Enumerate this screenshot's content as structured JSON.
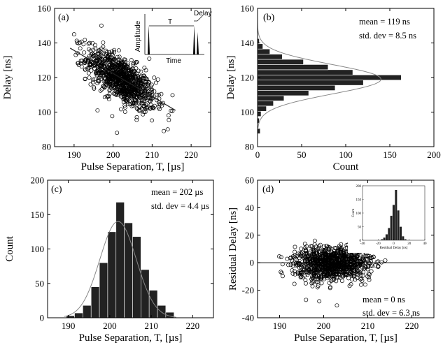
{
  "chart_data": [
    {
      "type": "scatter",
      "panel_label": "(a)",
      "xlabel": "Pulse Separation, T, [µs]",
      "ylabel": "Delay [ns]",
      "xlim": [
        185,
        225
      ],
      "ylim": [
        80,
        160
      ],
      "xticks": [
        "190",
        "200",
        "210",
        "220"
      ],
      "yticks": [
        "80",
        "100",
        "120",
        "140",
        "160"
      ],
      "marker": "open-circle",
      "fit_line": {
        "x": [
          189,
          216
        ],
        "y": [
          137,
          101
        ]
      },
      "cluster": {
        "n_points": 1000,
        "center": {
          "x": 202,
          "y": 119
        },
        "x_std": 4.4,
        "y_std": 8.5
      },
      "outlier_points": [
        {
          "x": 197,
          "y": 150
        },
        {
          "x": 201,
          "y": 88
        },
        {
          "x": 196,
          "y": 101
        },
        {
          "x": 213,
          "y": 89
        },
        {
          "x": 214,
          "y": 90
        },
        {
          "x": 190,
          "y": 145
        }
      ],
      "inset": {
        "xlabel": "Time",
        "ylabel": "Amplitude",
        "annotations": [
          "T",
          "Delay"
        ]
      }
    },
    {
      "type": "bar",
      "orientation": "horizontal",
      "panel_label": "(b)",
      "xlabel": "Count",
      "ylabel": "Delay [ns]",
      "xlim": [
        0,
        200
      ],
      "ylim": [
        80,
        160
      ],
      "xticks": [
        "0",
        "50",
        "100",
        "150",
        "200"
      ],
      "yticks": [
        "80",
        "100",
        "120",
        "140",
        "160"
      ],
      "bin_centers": [
        89,
        95,
        99,
        102,
        105,
        108,
        111,
        114,
        117,
        120,
        123,
        126,
        129,
        132,
        135,
        138,
        141
      ],
      "counts": [
        3,
        2,
        4,
        10,
        18,
        30,
        58,
        88,
        120,
        163,
        108,
        80,
        52,
        28,
        14,
        6,
        2
      ],
      "fit": {
        "type": "gaussian",
        "mean": 119,
        "std": 8.5,
        "peak": 140
      },
      "stats": [
        "mean = 119 ns",
        "std. dev = 8.5 ns"
      ]
    },
    {
      "type": "bar",
      "panel_label": "(c)",
      "xlabel": "Pulse Separation, T, [µs]",
      "ylabel": "Count",
      "xlim": [
        185,
        225
      ],
      "ylim": [
        0,
        200
      ],
      "xticks": [
        "190",
        "200",
        "210",
        "220"
      ],
      "yticks": [
        "0",
        "50",
        "100",
        "150",
        "200"
      ],
      "bin_centers": [
        190.5,
        192.5,
        194.5,
        196.5,
        198.5,
        200.5,
        202.5,
        204.5,
        206.5,
        208.5,
        210.5,
        212.5,
        214.5
      ],
      "counts": [
        3,
        7,
        18,
        45,
        80,
        125,
        168,
        138,
        118,
        70,
        40,
        18,
        8
      ],
      "fit": {
        "type": "gaussian",
        "mean": 202,
        "std": 4.4,
        "peak": 140
      },
      "stats": [
        "mean = 202 µs",
        "std. dev = 4.4 µs"
      ]
    },
    {
      "type": "scatter",
      "panel_label": "(d)",
      "xlabel": "Pulse Separation, T, [µs]",
      "ylabel": "Residual Delay [ns]",
      "xlim": [
        185,
        225
      ],
      "ylim": [
        -40,
        60
      ],
      "xticks": [
        "190",
        "200",
        "210",
        "220"
      ],
      "yticks": [
        "-40",
        "-20",
        "0",
        "20",
        "40",
        "60"
      ],
      "marker": "open-circle",
      "zero_line": 0,
      "cluster": {
        "n_points": 1000,
        "center": {
          "x": 202,
          "y": 0
        },
        "x_std": 4.4,
        "y_std": 6.3
      },
      "outlier_points": [
        {
          "x": 199,
          "y": -28
        },
        {
          "x": 203,
          "y": -31
        },
        {
          "x": 198,
          "y": 16
        },
        {
          "x": 196,
          "y": -27
        }
      ],
      "stats": [
        "mean = 0 ns",
        "std. dev = 6.3 ns"
      ],
      "inset": {
        "type": "bar",
        "xlabel": "Residual Delay [ns]",
        "ylabel": "Count",
        "xlim": [
          -40,
          40
        ],
        "ylim": [
          0,
          200
        ],
        "xticks": [
          "-40",
          "-20",
          "0",
          "20",
          "40"
        ],
        "yticks": [
          "0",
          "50",
          "100",
          "150",
          "200"
        ],
        "bin_centers": [
          -15,
          -12,
          -9,
          -6,
          -3,
          0,
          3,
          6,
          9,
          12,
          15
        ],
        "counts": [
          4,
          10,
          22,
          45,
          90,
          130,
          185,
          110,
          50,
          15,
          4
        ]
      }
    }
  ]
}
